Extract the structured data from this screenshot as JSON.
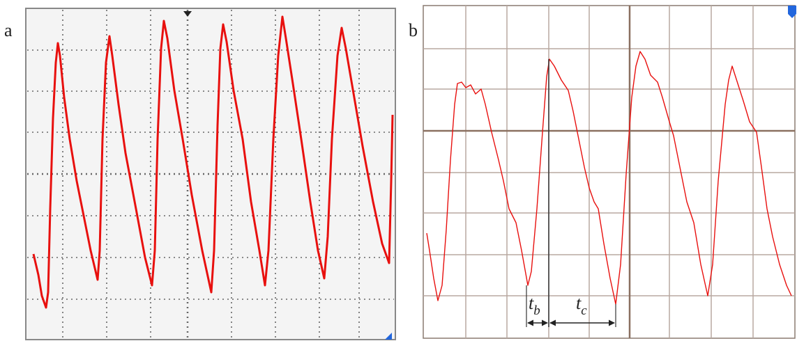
{
  "panels": [
    {
      "label": "a"
    },
    {
      "label": "b",
      "annotations": [
        {
          "symbol": "t",
          "subscript": "b"
        },
        {
          "symbol": "t",
          "subscript": "c"
        }
      ]
    }
  ]
}
